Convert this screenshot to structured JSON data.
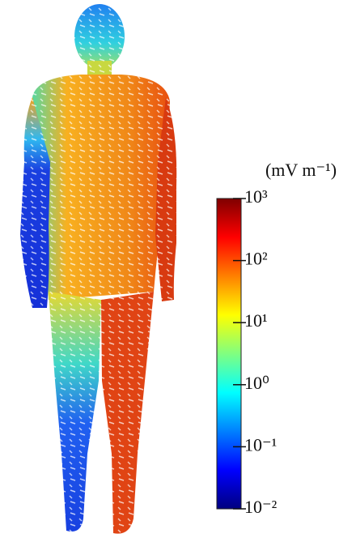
{
  "chart_data": {
    "type": "colorbar",
    "title": "(mV m⁻¹)",
    "scale": "log",
    "zlim": [
      0.01,
      1000
    ],
    "zticks": [
      {
        "value": 1000,
        "label": "10³"
      },
      {
        "value": 100,
        "label": "10²"
      },
      {
        "value": 10,
        "label": "10¹"
      },
      {
        "value": 1,
        "label": "10⁰"
      },
      {
        "value": 0.1,
        "label": "10⁻¹"
      },
      {
        "value": 0.01,
        "label": "10⁻²"
      }
    ],
    "colormap": [
      "#00007f",
      "#0000ff",
      "#0080ff",
      "#00ffff",
      "#80ff80",
      "#ffff00",
      "#ff8000",
      "#ff0000",
      "#7f0000"
    ]
  }
}
